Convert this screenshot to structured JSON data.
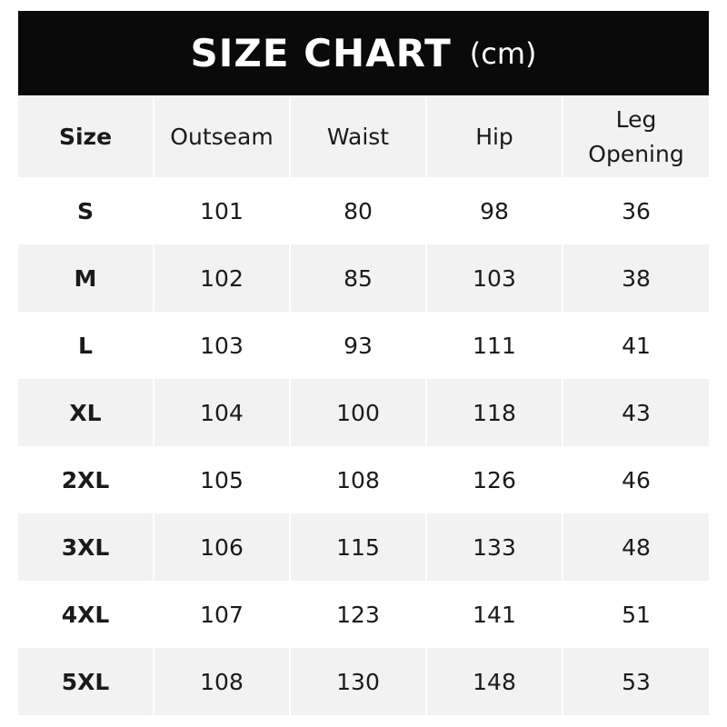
{
  "title": {
    "main": "SIZE CHART",
    "unit": "(cm)"
  },
  "table": {
    "headers": [
      "Size",
      "Outseam",
      "Waist",
      "Hip",
      "Leg Opening"
    ],
    "rows": [
      [
        "S",
        "101",
        "80",
        "98",
        "36"
      ],
      [
        "M",
        "102",
        "85",
        "103",
        "38"
      ],
      [
        "L",
        "103",
        "93",
        "111",
        "41"
      ],
      [
        "XL",
        "104",
        "100",
        "118",
        "43"
      ],
      [
        "2XL",
        "105",
        "108",
        "126",
        "46"
      ],
      [
        "3XL",
        "106",
        "115",
        "133",
        "48"
      ],
      [
        "4XL",
        "107",
        "123",
        "141",
        "51"
      ],
      [
        "5XL",
        "108",
        "130",
        "148",
        "53"
      ]
    ]
  },
  "colors": {
    "title_bg": "#0a0a0a",
    "stripe": "#f2f2f2"
  }
}
